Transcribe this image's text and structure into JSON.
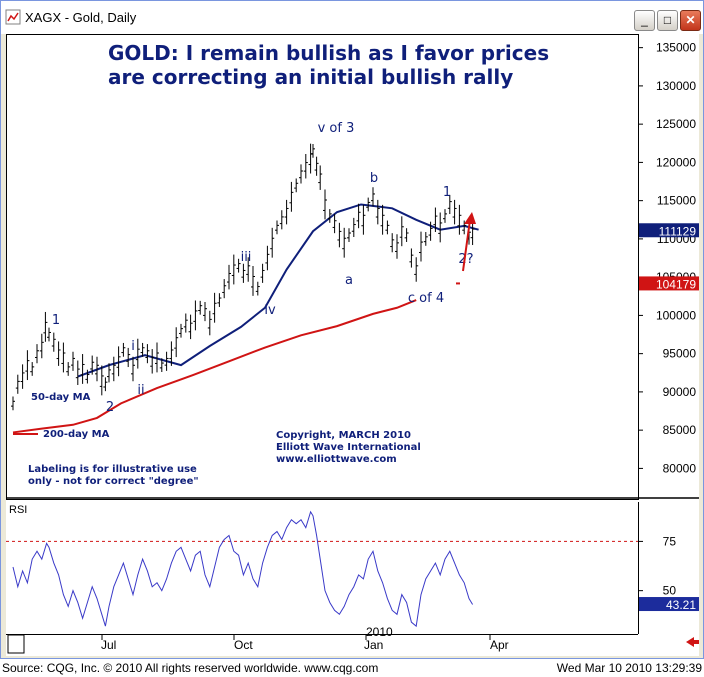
{
  "window": {
    "title": "XAGX - Gold, Daily",
    "buttons": {
      "minimize": "_",
      "maximize": "□",
      "close": "✕"
    }
  },
  "chart_data": {
    "type": "line",
    "title": "GOLD: I remain bullish as I favor prices",
    "title_line2": "are correcting an initial bullish rally",
    "price_axis": {
      "ticks": [
        "135000",
        "130000",
        "125000",
        "120000",
        "115000",
        "110000",
        "105000",
        "100000",
        "95000",
        "90000",
        "85000",
        "80000"
      ],
      "ylim": [
        76000,
        136000
      ]
    },
    "x_ticks": [
      "Jul",
      "Oct",
      "2010",
      "Jan",
      "Apr"
    ],
    "price_markers": {
      "last": "111129",
      "ma200": "104179"
    },
    "price": [
      [
        0,
        88500
      ],
      [
        4,
        91000
      ],
      [
        8,
        92000
      ],
      [
        12,
        93500
      ],
      [
        16,
        93000
      ],
      [
        20,
        95000
      ],
      [
        24,
        96000
      ],
      [
        27,
        98500
      ],
      [
        30,
        97500
      ],
      [
        34,
        96500
      ],
      [
        38,
        95000
      ],
      [
        42,
        94500
      ],
      [
        46,
        93000
      ],
      [
        50,
        94000
      ],
      [
        54,
        92500
      ],
      [
        58,
        93000
      ],
      [
        62,
        92000
      ],
      [
        66,
        93500
      ],
      [
        70,
        93000
      ],
      [
        74,
        91500
      ],
      [
        77,
        91000
      ],
      [
        80,
        92500
      ],
      [
        84,
        93000
      ],
      [
        88,
        94000
      ],
      [
        92,
        95500
      ],
      [
        96,
        94500
      ],
      [
        100,
        93000
      ],
      [
        104,
        95000
      ],
      [
        108,
        95500
      ],
      [
        112,
        95000
      ],
      [
        116,
        94000
      ],
      [
        120,
        94500
      ],
      [
        124,
        93500
      ],
      [
        128,
        94000
      ],
      [
        132,
        95000
      ],
      [
        136,
        96500
      ],
      [
        140,
        98000
      ],
      [
        144,
        99000
      ],
      [
        148,
        98500
      ],
      [
        152,
        100000
      ],
      [
        156,
        101000
      ],
      [
        160,
        100500
      ],
      [
        164,
        99000
      ],
      [
        168,
        101000
      ],
      [
        172,
        102000
      ],
      [
        176,
        103500
      ],
      [
        180,
        105000
      ],
      [
        184,
        106000
      ],
      [
        188,
        106500
      ],
      [
        192,
        105500
      ],
      [
        196,
        106000
      ],
      [
        200,
        104500
      ],
      [
        204,
        103500
      ],
      [
        208,
        105500
      ],
      [
        212,
        107500
      ],
      [
        216,
        109500
      ],
      [
        220,
        111500
      ],
      [
        224,
        112500
      ],
      [
        228,
        113500
      ],
      [
        232,
        115500
      ],
      [
        236,
        117000
      ],
      [
        240,
        118500
      ],
      [
        244,
        119500
      ],
      [
        248,
        120500
      ],
      [
        250,
        121500
      ],
      [
        253,
        119500
      ],
      [
        256,
        118000
      ],
      [
        260,
        114500
      ],
      [
        264,
        113000
      ],
      [
        268,
        112000
      ],
      [
        272,
        110500
      ],
      [
        276,
        109500
      ],
      [
        280,
        110500
      ],
      [
        284,
        111500
      ],
      [
        288,
        113000
      ],
      [
        292,
        112500
      ],
      [
        296,
        114500
      ],
      [
        300,
        115500
      ],
      [
        304,
        113500
      ],
      [
        308,
        112500
      ],
      [
        312,
        111500
      ],
      [
        316,
        109500
      ],
      [
        320,
        109000
      ],
      [
        324,
        111000
      ],
      [
        328,
        110500
      ],
      [
        332,
        107500
      ],
      [
        336,
        106000
      ],
      [
        340,
        109000
      ],
      [
        344,
        110000
      ],
      [
        348,
        111000
      ],
      [
        352,
        112500
      ],
      [
        356,
        111500
      ],
      [
        360,
        113000
      ],
      [
        364,
        114500
      ],
      [
        368,
        113500
      ],
      [
        372,
        112500
      ],
      [
        376,
        111500
      ],
      [
        380,
        110500
      ],
      [
        383,
        110800
      ]
    ],
    "ma50": [
      [
        54,
        92000
      ],
      [
        80,
        93500
      ],
      [
        110,
        94800
      ],
      [
        140,
        93500
      ],
      [
        164,
        96000
      ],
      [
        190,
        98500
      ],
      [
        210,
        101000
      ],
      [
        228,
        106000
      ],
      [
        250,
        111000
      ],
      [
        270,
        113500
      ],
      [
        290,
        114500
      ],
      [
        316,
        114000
      ],
      [
        336,
        112500
      ],
      [
        356,
        111200
      ],
      [
        376,
        111700
      ],
      [
        388,
        111200
      ]
    ],
    "ma200": [
      [
        0,
        84700
      ],
      [
        24,
        85200
      ],
      [
        50,
        85700
      ],
      [
        70,
        86600
      ],
      [
        90,
        88500
      ],
      [
        120,
        90500
      ],
      [
        150,
        92200
      ],
      [
        180,
        94000
      ],
      [
        210,
        95800
      ],
      [
        240,
        97400
      ],
      [
        270,
        98600
      ],
      [
        300,
        100200
      ],
      [
        320,
        101000
      ],
      [
        336,
        102000
      ]
    ],
    "wave_labels": [
      "1",
      "i",
      "ii",
      "2",
      "iii",
      "iv",
      "v of 3",
      "a",
      "b",
      "c of 4",
      "1",
      "2?"
    ],
    "legend": {
      "ma50": "50-day MA",
      "ma200": "200-day MA"
    },
    "annotations": {
      "copyright": "Copyright, MARCH 2010",
      "company": "Elliott Wave International",
      "url": "www.elliottwave.com",
      "disclaimer_line1": "Labeling is for illustrative use",
      "disclaimer_line2": "only - not for correct \"degree\""
    },
    "rsi": {
      "label": "RSI",
      "ticks": [
        "75",
        "50"
      ],
      "level": 75,
      "last": "43.21",
      "ylim": [
        28,
        95
      ],
      "values": [
        [
          0,
          62
        ],
        [
          4,
          52
        ],
        [
          8,
          60
        ],
        [
          12,
          54
        ],
        [
          16,
          66
        ],
        [
          20,
          70
        ],
        [
          24,
          66
        ],
        [
          28,
          74
        ],
        [
          30,
          72
        ],
        [
          34,
          64
        ],
        [
          38,
          58
        ],
        [
          42,
          48
        ],
        [
          46,
          42
        ],
        [
          50,
          50
        ],
        [
          54,
          44
        ],
        [
          58,
          36
        ],
        [
          62,
          44
        ],
        [
          66,
          52
        ],
        [
          70,
          46
        ],
        [
          74,
          38
        ],
        [
          77,
          32
        ],
        [
          80,
          42
        ],
        [
          84,
          52
        ],
        [
          88,
          58
        ],
        [
          92,
          64
        ],
        [
          96,
          56
        ],
        [
          100,
          48
        ],
        [
          104,
          58
        ],
        [
          108,
          66
        ],
        [
          112,
          60
        ],
        [
          116,
          52
        ],
        [
          120,
          54
        ],
        [
          124,
          50
        ],
        [
          128,
          56
        ],
        [
          132,
          64
        ],
        [
          136,
          70
        ],
        [
          140,
          72
        ],
        [
          144,
          66
        ],
        [
          148,
          60
        ],
        [
          152,
          68
        ],
        [
          156,
          70
        ],
        [
          160,
          58
        ],
        [
          164,
          52
        ],
        [
          168,
          62
        ],
        [
          172,
          72
        ],
        [
          176,
          76
        ],
        [
          180,
          78
        ],
        [
          184,
          70
        ],
        [
          188,
          68
        ],
        [
          192,
          58
        ],
        [
          196,
          64
        ],
        [
          200,
          56
        ],
        [
          204,
          52
        ],
        [
          208,
          64
        ],
        [
          212,
          72
        ],
        [
          216,
          78
        ],
        [
          220,
          80
        ],
        [
          224,
          76
        ],
        [
          228,
          82
        ],
        [
          232,
          86
        ],
        [
          236,
          84
        ],
        [
          240,
          86
        ],
        [
          244,
          82
        ],
        [
          248,
          90
        ],
        [
          250,
          88
        ],
        [
          253,
          78
        ],
        [
          256,
          66
        ],
        [
          260,
          50
        ],
        [
          264,
          44
        ],
        [
          268,
          40
        ],
        [
          272,
          38
        ],
        [
          276,
          42
        ],
        [
          280,
          48
        ],
        [
          284,
          52
        ],
        [
          288,
          58
        ],
        [
          292,
          56
        ],
        [
          296,
          66
        ],
        [
          300,
          70
        ],
        [
          304,
          60
        ],
        [
          308,
          54
        ],
        [
          312,
          46
        ],
        [
          316,
          40
        ],
        [
          320,
          38
        ],
        [
          324,
          48
        ],
        [
          328,
          44
        ],
        [
          332,
          34
        ],
        [
          336,
          32
        ],
        [
          340,
          48
        ],
        [
          344,
          56
        ],
        [
          348,
          60
        ],
        [
          352,
          64
        ],
        [
          356,
          58
        ],
        [
          360,
          66
        ],
        [
          364,
          70
        ],
        [
          368,
          64
        ],
        [
          372,
          58
        ],
        [
          376,
          54
        ],
        [
          380,
          46
        ],
        [
          383,
          43
        ]
      ]
    }
  },
  "footer": {
    "source": "Source: CQG, Inc. © 2010 All rights reserved worldwide. www.cqg.com",
    "timestamp": "Wed Mar 10 2010 13:29:39"
  },
  "colors": {
    "navy": "#0f1f7a",
    "ma200": "#d01414",
    "rsi": "#3a3ac8",
    "axis": "#000000"
  }
}
